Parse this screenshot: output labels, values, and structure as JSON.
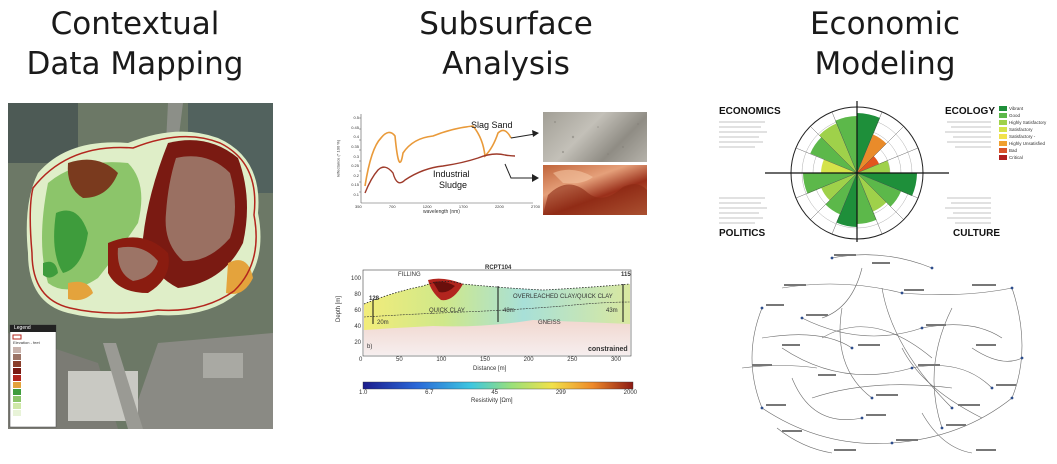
{
  "titles": {
    "col1": [
      "Contextual",
      "Data Mapping"
    ],
    "col2": [
      "Subsurface",
      "Analysis"
    ],
    "col3": [
      "Economic",
      "Modeling"
    ]
  },
  "map": {
    "legend_title": "Legend",
    "legend_items": [
      "Elevation - feet"
    ]
  },
  "spectrum": {
    "label_slag": "Slag Sand",
    "label_sludge_1": "Industrial",
    "label_sludge_2": "Sludge",
    "yaxis_label": "reflectance (* 100 %)",
    "xaxis_label": "wavelength (nm)",
    "xticks": [
      "350",
      "700",
      "1200",
      "1700",
      "2200",
      "2700"
    ],
    "yticks": [
      "0.5",
      "0.45",
      "0.4",
      "0.35",
      "0.3",
      "0.25",
      "0.2",
      "0.15",
      "0.1"
    ]
  },
  "resistivity": {
    "labels": {
      "filling": "FILLING",
      "rcpt": "RCPT104",
      "dist_115": "115",
      "dist_128": "128",
      "overleached": "OVERLEACHED CLAY/QUICK CLAY",
      "quickclay": "QUICK CLAY",
      "gneiss": "GNEISS",
      "d20m": "20m",
      "d48m": "48m",
      "d43m": "43m",
      "panel_b": "b)",
      "constrained": "constrained"
    },
    "yaxis_label": "Depth [m]",
    "xaxis_label": "Distance [m]",
    "yticks": [
      "100",
      "80",
      "60",
      "40",
      "20"
    ],
    "xticks": [
      "0",
      "50",
      "100",
      "150",
      "200",
      "250",
      "300"
    ],
    "colorbar_ticks": [
      "1.0",
      "6.7",
      "45",
      "299",
      "2000"
    ],
    "colorbar_label": "Resistivity [Ωm]"
  },
  "radar": {
    "quadrants": [
      "ECONOMICS",
      "ECOLOGY",
      "POLITICS",
      "CULTURE"
    ],
    "legend": [
      "Vibrant",
      "Good",
      "Highly Satisfactory",
      "Satisfactory",
      "Satisfactory -",
      "Highly Unsatisfied",
      "Bad",
      "Critical"
    ],
    "legend_colors": [
      "#1e8f3a",
      "#5cb84a",
      "#9fd14a",
      "#d5e34a",
      "#f2e24d",
      "#f0a030",
      "#d9532a",
      "#b01e1e"
    ]
  }
}
